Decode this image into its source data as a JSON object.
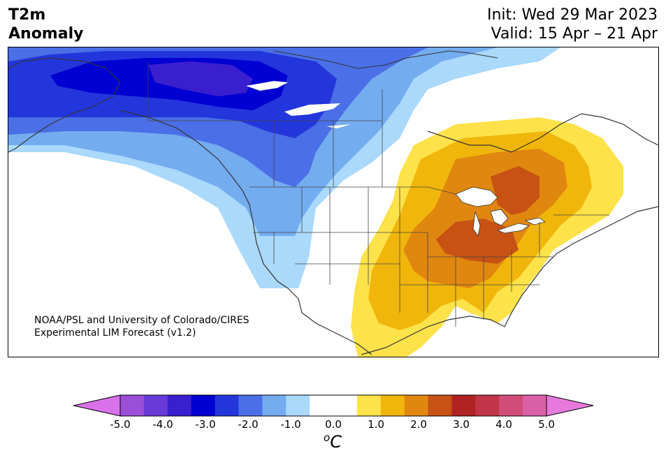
{
  "title": {
    "left_line1": "T2m",
    "left_line2": "Anomaly",
    "init": "Init: Wed 29 Mar 2023",
    "valid": "Valid: 15 Apr – 21 Apr"
  },
  "credit": {
    "line1": "NOAA/PSL and University of Colorado/CIRES",
    "line2": "Experimental LIM Forecast (v1.2)"
  },
  "colorbar": {
    "colors": [
      "#d971ea",
      "#9b4ed8",
      "#6a3ad8",
      "#3a1fcf",
      "#0000d2",
      "#2336dc",
      "#4a6fe6",
      "#74acf0",
      "#aad9fb",
      "#ffffff",
      "#ffffff",
      "#fde24a",
      "#f1b60b",
      "#e08710",
      "#c75214",
      "#b12222",
      "#c23448",
      "#d04d7a",
      "#da60a8",
      "#e879dc"
    ],
    "ticks": [
      "-5.0",
      "-4.0",
      "-3.0",
      "-2.0",
      "-1.0",
      "0.0",
      "1.0",
      "2.0",
      "3.0",
      "4.0",
      "5.0"
    ],
    "units_base": "C",
    "units_sup": "o"
  }
}
